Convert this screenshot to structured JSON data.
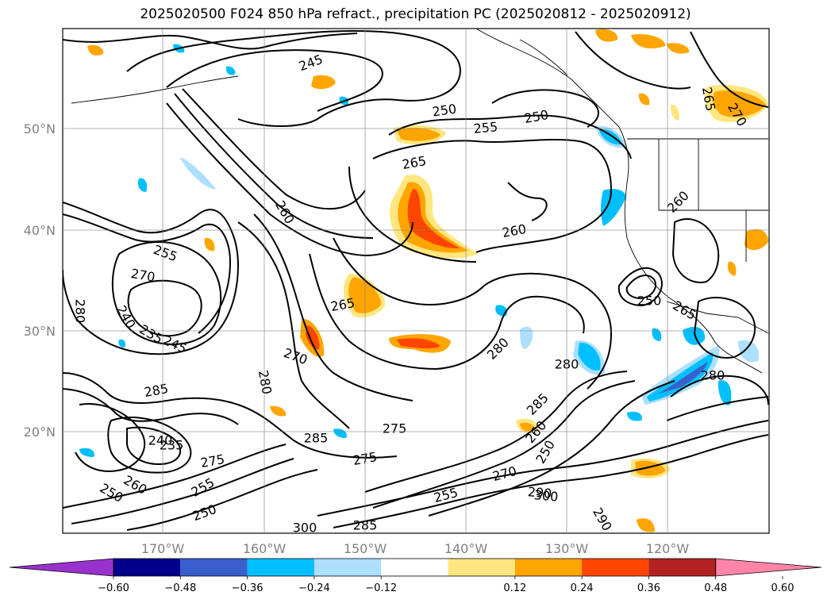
{
  "title": "2025020500 F024 850 hPa refract., precipitation PC (2025020812 - 2025020912)",
  "lat_labels": [
    "50°N",
    "40°N",
    "30°N",
    "20°N"
  ],
  "lon_labels": [
    "170°W",
    "160°W",
    "150°W",
    "140°W",
    "130°W",
    "120°W"
  ],
  "colorbar": {
    "ticks": [
      "−0.60",
      "−0.48",
      "−0.36",
      "−0.24",
      "−0.12",
      "0.12",
      "0.24",
      "0.36",
      "0.48",
      "0.60"
    ],
    "colors": [
      "#9932CC",
      "#00008B",
      "#3A5FCD",
      "#00BFFF",
      "#ADDFFF",
      "#FFFFFF",
      "#FFE680",
      "#FFA500",
      "#FF4500",
      "#B22222",
      "#FF85A8"
    ]
  },
  "contour_labels": [
    "245",
    "250",
    "255",
    "250",
    "265",
    "265",
    "270",
    "260",
    "260",
    "260",
    "265",
    "270",
    "280",
    "280",
    "275",
    "275",
    "280",
    "285",
    "260",
    "250",
    "255",
    "270",
    "290",
    "300",
    "290",
    "235",
    "240",
    "245",
    "250",
    "255",
    "280",
    "270",
    "285",
    "255",
    "250",
    "265",
    "280",
    "285",
    "300",
    "285",
    "275",
    "260",
    "250",
    "240",
    "235"
  ],
  "fills": {
    "light_orange": "#FFE680",
    "orange": "#FFA500",
    "red": "#FF4500",
    "light_blue": "#ADDFFF",
    "blue": "#00BFFF",
    "dark_blue": "#3A5FCD"
  }
}
